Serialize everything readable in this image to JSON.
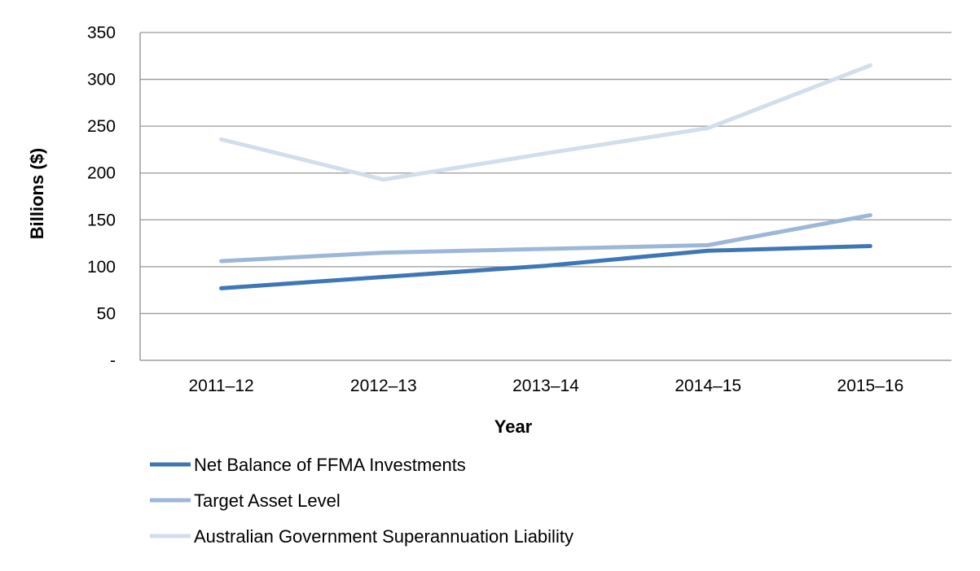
{
  "chart_data": {
    "type": "line",
    "title": "",
    "xlabel": "Year",
    "ylabel": "Billions ($)",
    "categories": [
      "2011–12",
      "2012–13",
      "2013–14",
      "2014–15",
      "2015–16"
    ],
    "ylim": [
      0,
      350
    ],
    "yticks": [
      0,
      50,
      100,
      150,
      200,
      250,
      300,
      350
    ],
    "ytick_labels": [
      "-",
      "50",
      "100",
      "150",
      "200",
      "250",
      "300",
      "350"
    ],
    "grid": true,
    "legend_position": "bottom-left",
    "series": [
      {
        "name": "Net Balance of FFMA Investments",
        "color": "#3f76b5",
        "values": [
          77,
          89,
          101,
          117,
          122
        ]
      },
      {
        "name": "Target Asset Level",
        "color": "#9db7d9",
        "values": [
          106,
          115,
          119,
          123,
          155
        ]
      },
      {
        "name": "Australian Government Superannuation Liability",
        "color": "#d3deec",
        "values": [
          236,
          193,
          221,
          248,
          315
        ]
      }
    ]
  }
}
